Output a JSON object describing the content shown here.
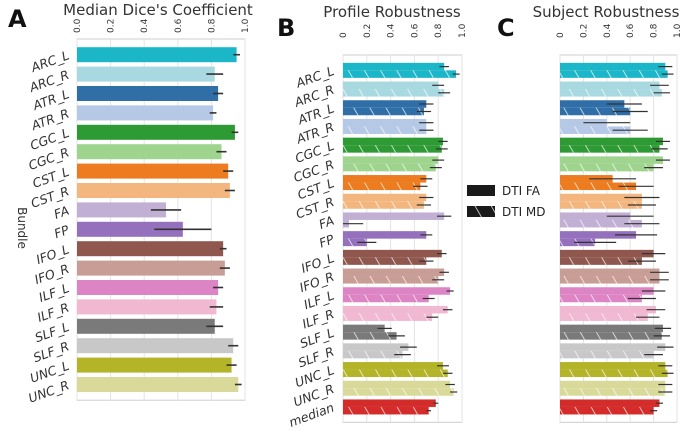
{
  "figure": {
    "panel_letters": [
      "A",
      "B",
      "C"
    ],
    "legend": [
      {
        "label": "DTI FA",
        "pattern": "solid"
      },
      {
        "label": "DTI MD",
        "pattern": "hatched"
      }
    ]
  },
  "chart_data": [
    {
      "type": "bar",
      "panel": "A",
      "title": "Median Dice's Coefficient",
      "ylabel": "Bundle",
      "xlim": [
        0,
        1
      ],
      "ticks": [
        "0.0",
        "0.2",
        "0.4",
        "0.6",
        "0.8",
        "1.0"
      ],
      "categories": [
        "ARC_L",
        "ARC_R",
        "ATR_L",
        "ATR_R",
        "CGC_L",
        "CGC_R",
        "CST_L",
        "CST_R",
        "FA",
        "FP",
        "IFO_L",
        "IFO_R",
        "ILF_L",
        "ILF_R",
        "SLF_L",
        "SLF_R",
        "UNC_L",
        "UNC_R"
      ],
      "colors": [
        "#1cb6c9",
        "#a8d8e0",
        "#2f6ea6",
        "#b5c8e6",
        "#2e9a34",
        "#9ed48d",
        "#ec7c1f",
        "#f4b67f",
        "#c2afd4",
        "#9470bd",
        "#8f574d",
        "#c89d95",
        "#dd84c5",
        "#f1b8d2",
        "#7a7a7a",
        "#c8c8c8",
        "#b4b429",
        "#d9d99a"
      ],
      "values": [
        0.95,
        0.82,
        0.84,
        0.81,
        0.94,
        0.86,
        0.9,
        0.91,
        0.53,
        0.63,
        0.87,
        0.88,
        0.84,
        0.83,
        0.82,
        0.93,
        0.92,
        0.96
      ],
      "err": [
        0.02,
        0.05,
        0.03,
        0.02,
        0.02,
        0.03,
        0.03,
        0.03,
        0.09,
        0.17,
        0.02,
        0.03,
        0.03,
        0.04,
        0.05,
        0.03,
        0.03,
        0.02
      ]
    },
    {
      "type": "bar",
      "panel": "B",
      "title": "Profile Robustness",
      "xlim": [
        0,
        1
      ],
      "ticks": [
        "0",
        "0.2",
        "0.4",
        "0.6",
        "0.8",
        "1.0"
      ],
      "categories": [
        "ARC_L",
        "ARC_R",
        "ATR_L",
        "ATR_R",
        "CGC_L",
        "CGC_R",
        "CST_L",
        "CST_R",
        "FA",
        "FP",
        "IFO_L",
        "IFO_R",
        "ILF_L",
        "ILF_R",
        "SLF_L",
        "SLF_R",
        "UNC_L",
        "UNC_R",
        "median"
      ],
      "colors": [
        "#1cb6c9",
        "#a8d8e0",
        "#2f6ea6",
        "#b5c8e6",
        "#2e9a34",
        "#9ed48d",
        "#ec7c1f",
        "#f4b67f",
        "#c2afd4",
        "#9470bd",
        "#8f574d",
        "#c89d95",
        "#dd84c5",
        "#f1b8d2",
        "#7a7a7a",
        "#c8c8c8",
        "#b4b429",
        "#d9d99a",
        "#d42b2b"
      ],
      "series": [
        {
          "name": "DTI FA",
          "values": [
            0.85,
            0.8,
            0.7,
            0.7,
            0.84,
            0.8,
            0.7,
            0.7,
            0.85,
            0.7,
            0.83,
            0.85,
            0.9,
            0.88,
            0.35,
            0.55,
            0.84,
            0.9,
            0.78
          ],
          "err": [
            0.04,
            0.05,
            0.06,
            0.06,
            0.04,
            0.05,
            0.05,
            0.06,
            0.06,
            0.05,
            0.04,
            0.04,
            0.03,
            0.04,
            0.06,
            0.07,
            0.05,
            0.04,
            0.02
          ]
        },
        {
          "name": "DTI MD",
          "values": [
            0.95,
            0.85,
            0.68,
            0.7,
            0.83,
            0.78,
            0.65,
            0.68,
            0.05,
            0.2,
            0.7,
            0.8,
            0.72,
            0.75,
            0.45,
            0.5,
            0.88,
            0.93,
            0.72
          ],
          "err": [
            0.03,
            0.05,
            0.06,
            0.06,
            0.05,
            0.05,
            0.06,
            0.06,
            0.12,
            0.08,
            0.06,
            0.05,
            0.05,
            0.05,
            0.07,
            0.07,
            0.04,
            0.03,
            0.02
          ]
        }
      ]
    },
    {
      "type": "bar",
      "panel": "C",
      "title": "Subject Robustness",
      "xlim": [
        0,
        1
      ],
      "ticks": [
        "0",
        "0.2",
        "0.4",
        "0.6",
        "0.8",
        "1.0"
      ],
      "categories": [
        "ARC_L",
        "ARC_R",
        "ATR_L",
        "ATR_R",
        "CGC_L",
        "CGC_R",
        "CST_L",
        "CST_R",
        "FA",
        "FP",
        "IFO_L",
        "IFO_R",
        "ILF_L",
        "ILF_R",
        "SLF_L",
        "SLF_R",
        "UNC_L",
        "UNC_R",
        "median"
      ],
      "colors": [
        "#1cb6c9",
        "#a8d8e0",
        "#2f6ea6",
        "#b5c8e6",
        "#2e9a34",
        "#9ed48d",
        "#ec7c1f",
        "#f4b67f",
        "#c2afd4",
        "#9470bd",
        "#8f574d",
        "#c89d95",
        "#dd84c5",
        "#f1b8d2",
        "#7a7a7a",
        "#c8c8c8",
        "#b4b429",
        "#d9d99a",
        "#d42b2b"
      ],
      "series": [
        {
          "name": "DTI FA",
          "values": [
            0.9,
            0.85,
            0.55,
            0.4,
            0.88,
            0.88,
            0.45,
            0.7,
            0.6,
            0.65,
            0.8,
            0.85,
            0.8,
            0.82,
            0.88,
            0.9,
            0.9,
            0.9,
            0.85
          ],
          "err": [
            0.06,
            0.08,
            0.15,
            0.2,
            0.06,
            0.06,
            0.2,
            0.15,
            0.2,
            0.18,
            0.1,
            0.08,
            0.1,
            0.08,
            0.07,
            0.07,
            0.06,
            0.06,
            0.03
          ]
        },
        {
          "name": "DTI MD",
          "values": [
            0.92,
            0.87,
            0.6,
            0.6,
            0.85,
            0.8,
            0.65,
            0.7,
            0.7,
            0.3,
            0.7,
            0.85,
            0.7,
            0.75,
            0.87,
            0.8,
            0.92,
            0.9,
            0.8
          ],
          "err": [
            0.05,
            0.07,
            0.15,
            0.15,
            0.07,
            0.08,
            0.15,
            0.12,
            0.15,
            0.18,
            0.12,
            0.08,
            0.12,
            0.1,
            0.07,
            0.08,
            0.05,
            0.06,
            0.03
          ]
        }
      ]
    }
  ]
}
